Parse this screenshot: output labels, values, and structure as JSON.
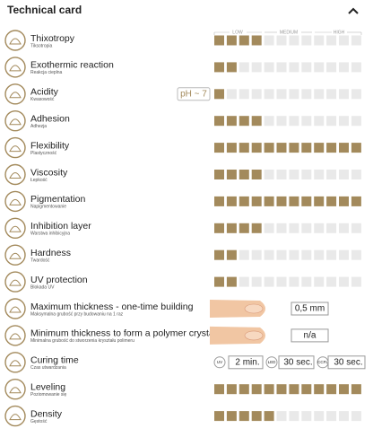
{
  "header": {
    "title": "Technical card"
  },
  "scale": {
    "low": "LOW",
    "medium": "MEDIUM",
    "high": "HIGH"
  },
  "rows": [
    {
      "name": "Thixotropy",
      "subtitle": "Tiksotropia",
      "level": 4
    },
    {
      "name": "Exothermic reaction",
      "subtitle": "Reakcja cieplna",
      "level": 2
    },
    {
      "name": "Acidity",
      "subtitle": "Kwasowość",
      "level": 1,
      "badge": "pH ~ 7"
    },
    {
      "name": "Adhesion",
      "subtitle": "Adhezja",
      "level": 4
    },
    {
      "name": "Flexibility",
      "subtitle": "Plastyczność",
      "level": 12
    },
    {
      "name": "Viscosity",
      "subtitle": "Łepkość",
      "level": 4
    },
    {
      "name": "Pigmentation",
      "subtitle": "Napigmentowanie",
      "level": 12
    },
    {
      "name": "Inhibition layer",
      "subtitle": "Warstwa inhibicyjna",
      "level": 4
    },
    {
      "name": "Hardness",
      "subtitle": "Twardość",
      "level": 2
    },
    {
      "name": "UV protection",
      "subtitle": "Blokada UV",
      "level": 2
    },
    {
      "name": "Maximum thickness - one-time building",
      "subtitle": "Maksymalna grubość przy budowaniu na 1 raz",
      "value": "0,5 mm"
    },
    {
      "name": "Minimum thickness to form a polymer crystal",
      "subtitle": "Minimalna grubość do stworzenia kryształu polimeru",
      "value": "n/a"
    },
    {
      "name": "Curing time",
      "subtitle": "Czas utwardzania",
      "curing": [
        {
          "tag": "UV",
          "value": "2 min."
        },
        {
          "tag": "LED",
          "value": "30 sec."
        },
        {
          "tag": "CCFL",
          "value": "30 sec."
        }
      ]
    },
    {
      "name": "Leveling",
      "subtitle": "Poziomowanie się",
      "level": 12
    },
    {
      "name": "Density",
      "subtitle": "Gęstość",
      "level": 5
    }
  ]
}
